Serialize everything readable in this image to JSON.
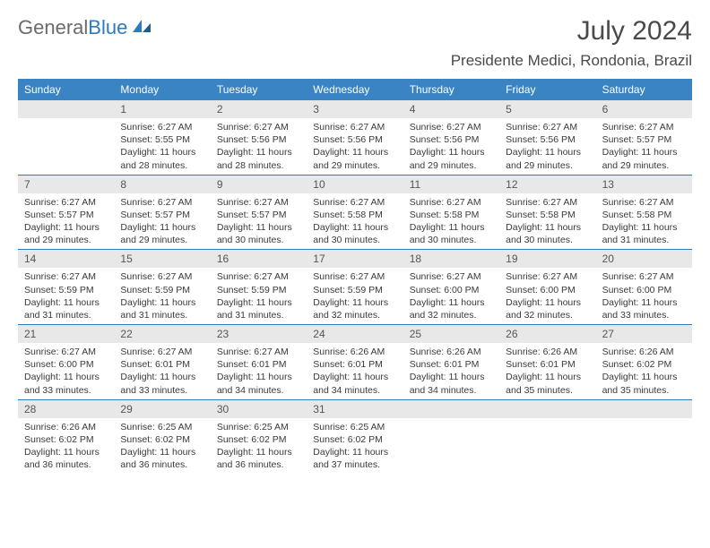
{
  "logo": {
    "part1": "General",
    "part2": "Blue"
  },
  "title": "July 2024",
  "location": "Presidente Medici, Rondonia, Brazil",
  "colors": {
    "header_bg": "#3b84c4",
    "header_text": "#ffffff",
    "daynum_bg": "#e8e8e8",
    "week_border": "#2b7bbf",
    "body_text": "#3a3a3a"
  },
  "weekdays": [
    "Sunday",
    "Monday",
    "Tuesday",
    "Wednesday",
    "Thursday",
    "Friday",
    "Saturday"
  ],
  "weeks": [
    [
      {
        "n": "",
        "sr": "",
        "ss": "",
        "dl": ""
      },
      {
        "n": "1",
        "sr": "6:27 AM",
        "ss": "5:55 PM",
        "dl": "11 hours and 28 minutes."
      },
      {
        "n": "2",
        "sr": "6:27 AM",
        "ss": "5:56 PM",
        "dl": "11 hours and 28 minutes."
      },
      {
        "n": "3",
        "sr": "6:27 AM",
        "ss": "5:56 PM",
        "dl": "11 hours and 29 minutes."
      },
      {
        "n": "4",
        "sr": "6:27 AM",
        "ss": "5:56 PM",
        "dl": "11 hours and 29 minutes."
      },
      {
        "n": "5",
        "sr": "6:27 AM",
        "ss": "5:56 PM",
        "dl": "11 hours and 29 minutes."
      },
      {
        "n": "6",
        "sr": "6:27 AM",
        "ss": "5:57 PM",
        "dl": "11 hours and 29 minutes."
      }
    ],
    [
      {
        "n": "7",
        "sr": "6:27 AM",
        "ss": "5:57 PM",
        "dl": "11 hours and 29 minutes."
      },
      {
        "n": "8",
        "sr": "6:27 AM",
        "ss": "5:57 PM",
        "dl": "11 hours and 29 minutes."
      },
      {
        "n": "9",
        "sr": "6:27 AM",
        "ss": "5:57 PM",
        "dl": "11 hours and 30 minutes."
      },
      {
        "n": "10",
        "sr": "6:27 AM",
        "ss": "5:58 PM",
        "dl": "11 hours and 30 minutes."
      },
      {
        "n": "11",
        "sr": "6:27 AM",
        "ss": "5:58 PM",
        "dl": "11 hours and 30 minutes."
      },
      {
        "n": "12",
        "sr": "6:27 AM",
        "ss": "5:58 PM",
        "dl": "11 hours and 30 minutes."
      },
      {
        "n": "13",
        "sr": "6:27 AM",
        "ss": "5:58 PM",
        "dl": "11 hours and 31 minutes."
      }
    ],
    [
      {
        "n": "14",
        "sr": "6:27 AM",
        "ss": "5:59 PM",
        "dl": "11 hours and 31 minutes."
      },
      {
        "n": "15",
        "sr": "6:27 AM",
        "ss": "5:59 PM",
        "dl": "11 hours and 31 minutes."
      },
      {
        "n": "16",
        "sr": "6:27 AM",
        "ss": "5:59 PM",
        "dl": "11 hours and 31 minutes."
      },
      {
        "n": "17",
        "sr": "6:27 AM",
        "ss": "5:59 PM",
        "dl": "11 hours and 32 minutes."
      },
      {
        "n": "18",
        "sr": "6:27 AM",
        "ss": "6:00 PM",
        "dl": "11 hours and 32 minutes."
      },
      {
        "n": "19",
        "sr": "6:27 AM",
        "ss": "6:00 PM",
        "dl": "11 hours and 32 minutes."
      },
      {
        "n": "20",
        "sr": "6:27 AM",
        "ss": "6:00 PM",
        "dl": "11 hours and 33 minutes."
      }
    ],
    [
      {
        "n": "21",
        "sr": "6:27 AM",
        "ss": "6:00 PM",
        "dl": "11 hours and 33 minutes."
      },
      {
        "n": "22",
        "sr": "6:27 AM",
        "ss": "6:01 PM",
        "dl": "11 hours and 33 minutes."
      },
      {
        "n": "23",
        "sr": "6:27 AM",
        "ss": "6:01 PM",
        "dl": "11 hours and 34 minutes."
      },
      {
        "n": "24",
        "sr": "6:26 AM",
        "ss": "6:01 PM",
        "dl": "11 hours and 34 minutes."
      },
      {
        "n": "25",
        "sr": "6:26 AM",
        "ss": "6:01 PM",
        "dl": "11 hours and 34 minutes."
      },
      {
        "n": "26",
        "sr": "6:26 AM",
        "ss": "6:01 PM",
        "dl": "11 hours and 35 minutes."
      },
      {
        "n": "27",
        "sr": "6:26 AM",
        "ss": "6:02 PM",
        "dl": "11 hours and 35 minutes."
      }
    ],
    [
      {
        "n": "28",
        "sr": "6:26 AM",
        "ss": "6:02 PM",
        "dl": "11 hours and 36 minutes."
      },
      {
        "n": "29",
        "sr": "6:25 AM",
        "ss": "6:02 PM",
        "dl": "11 hours and 36 minutes."
      },
      {
        "n": "30",
        "sr": "6:25 AM",
        "ss": "6:02 PM",
        "dl": "11 hours and 36 minutes."
      },
      {
        "n": "31",
        "sr": "6:25 AM",
        "ss": "6:02 PM",
        "dl": "11 hours and 37 minutes."
      },
      {
        "n": "",
        "sr": "",
        "ss": "",
        "dl": ""
      },
      {
        "n": "",
        "sr": "",
        "ss": "",
        "dl": ""
      },
      {
        "n": "",
        "sr": "",
        "ss": "",
        "dl": ""
      }
    ]
  ]
}
